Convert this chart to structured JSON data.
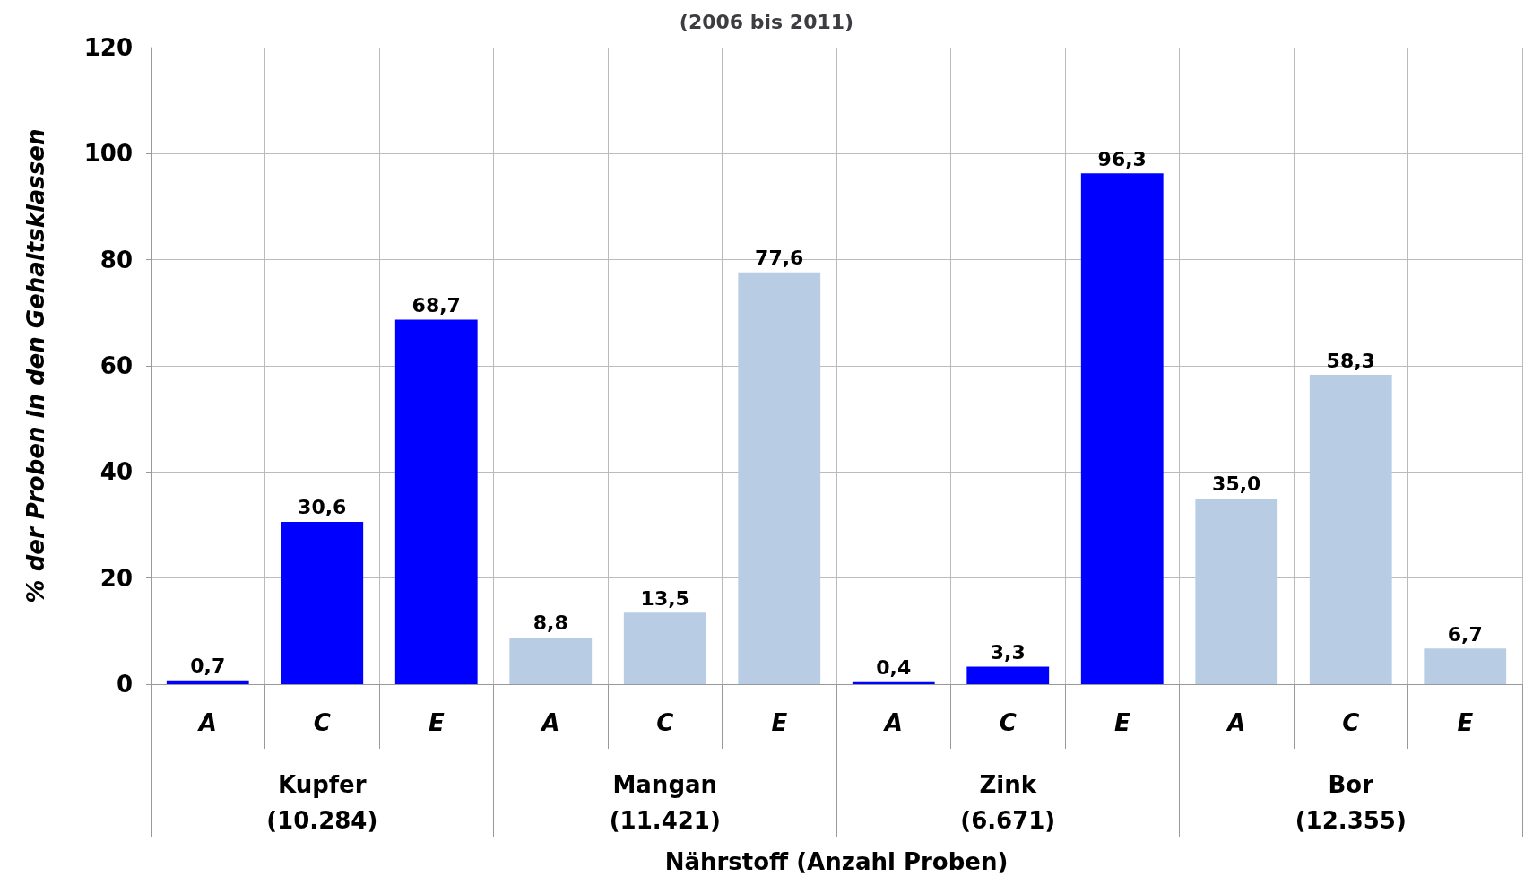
{
  "chart_data": {
    "type": "bar",
    "subtitle": "(2006 bis 2011)",
    "xlabel": "Nährstoff (Anzahl Proben)",
    "ylabel": "% der Proben in den Gehaltsklassen",
    "categories": [
      "A",
      "C",
      "E",
      "A",
      "C",
      "E",
      "A",
      "C",
      "E",
      "A",
      "C",
      "E"
    ],
    "values": [
      0.7,
      30.6,
      68.7,
      8.8,
      13.5,
      77.6,
      0.4,
      3.3,
      96.3,
      35.0,
      58.3,
      6.7
    ],
    "value_labels": [
      "0,7",
      "30,6",
      "68,7",
      "8,8",
      "13,5",
      "77,6",
      "0,4",
      "3,3",
      "96,3",
      "35,0",
      "58,3",
      "6,7"
    ],
    "colors": [
      "#0000ff",
      "#0000ff",
      "#0000ff",
      "#b8cce4",
      "#b8cce4",
      "#b8cce4",
      "#0000ff",
      "#0000ff",
      "#0000ff",
      "#b8cce4",
      "#b8cce4",
      "#b8cce4"
    ],
    "annotations": [
      "Kupfer\n(10.284)",
      "Mangan\n(11.421)",
      "Zink\n(6.671)",
      "Bor\n(12.355)"
    ],
    "ylim": [
      0,
      120
    ],
    "yticks": [
      0,
      20,
      40,
      60,
      80,
      100,
      120
    ],
    "grid": true
  }
}
